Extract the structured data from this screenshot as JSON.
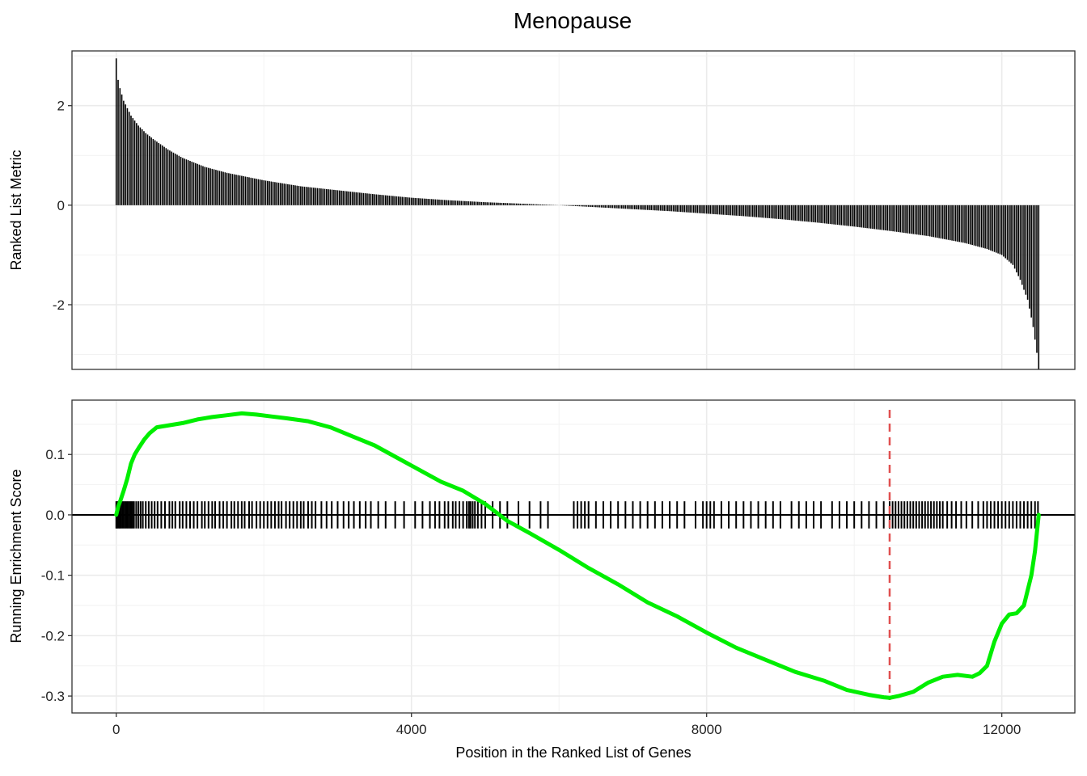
{
  "chart_data": {
    "type": "line",
    "title": "Menopause",
    "xlabel": "Position in the Ranked List of Genes",
    "xlim": [
      -600,
      12990
    ],
    "xticks": [
      0,
      4000,
      8000,
      12000
    ],
    "grid": true,
    "panels": [
      {
        "name": "ranked-metric",
        "ylabel": "Ranked List Metric",
        "ylim": [
          -3.3,
          3.1
        ],
        "yticks": [
          -2,
          0,
          2
        ],
        "n_genes": 12500,
        "ranked_metric_curve": [
          [
            0,
            2.95
          ],
          [
            20,
            2.55
          ],
          [
            50,
            2.35
          ],
          [
            100,
            2.1
          ],
          [
            150,
            1.95
          ],
          [
            200,
            1.8
          ],
          [
            300,
            1.6
          ],
          [
            400,
            1.45
          ],
          [
            500,
            1.33
          ],
          [
            700,
            1.12
          ],
          [
            900,
            0.95
          ],
          [
            1200,
            0.77
          ],
          [
            1500,
            0.65
          ],
          [
            2000,
            0.5
          ],
          [
            2500,
            0.38
          ],
          [
            3000,
            0.3
          ],
          [
            3500,
            0.22
          ],
          [
            4000,
            0.15
          ],
          [
            4500,
            0.1
          ],
          [
            5000,
            0.06
          ],
          [
            5500,
            0.03
          ],
          [
            6000,
            0.0
          ],
          [
            6500,
            -0.04
          ],
          [
            7000,
            -0.08
          ],
          [
            7500,
            -0.12
          ],
          [
            8000,
            -0.17
          ],
          [
            8500,
            -0.22
          ],
          [
            9000,
            -0.28
          ],
          [
            9500,
            -0.35
          ],
          [
            10000,
            -0.43
          ],
          [
            10500,
            -0.52
          ],
          [
            11000,
            -0.62
          ],
          [
            11500,
            -0.76
          ],
          [
            11800,
            -0.88
          ],
          [
            12000,
            -1.0
          ],
          [
            12150,
            -1.2
          ],
          [
            12250,
            -1.5
          ],
          [
            12350,
            -1.9
          ],
          [
            12420,
            -2.4
          ],
          [
            12470,
            -2.9
          ],
          [
            12500,
            -3.3
          ]
        ]
      },
      {
        "name": "running-enrichment",
        "ylabel": "Running Enrichment Score",
        "ylim": [
          -0.328,
          0.19
        ],
        "yticks": [
          -0.3,
          -0.2,
          -0.1,
          0.0,
          0.1
        ],
        "ytick_labels": [
          "-0.3",
          "-0.2",
          "-0.1",
          "0.0",
          "0.1"
        ],
        "max_deviation_position": 10480,
        "series": [
          {
            "color": "#00ee00",
            "x": [
              0,
              30,
              60,
              100,
              150,
              200,
              250,
              300,
              380,
              450,
              550,
              700,
              900,
              1100,
              1300,
              1500,
              1700,
              1900,
              2100,
              2300,
              2600,
              2900,
              3200,
              3500,
              3800,
              4100,
              4400,
              4700,
              5000,
              5300,
              5600,
              6000,
              6400,
              6800,
              7200,
              7600,
              8000,
              8400,
              8800,
              9200,
              9600,
              9900,
              10200,
              10400,
              10480,
              10600,
              10800,
              11000,
              11200,
              11400,
              11600,
              11700,
              11800,
              11900,
              12000,
              12100,
              12200,
              12300,
              12400,
              12450,
              12500
            ],
            "y": [
              0.0,
              0.015,
              0.025,
              0.04,
              0.06,
              0.085,
              0.1,
              0.11,
              0.125,
              0.135,
              0.145,
              0.148,
              0.152,
              0.158,
              0.162,
              0.165,
              0.168,
              0.166,
              0.163,
              0.16,
              0.155,
              0.145,
              0.13,
              0.115,
              0.095,
              0.075,
              0.055,
              0.04,
              0.018,
              -0.01,
              -0.03,
              -0.058,
              -0.088,
              -0.115,
              -0.145,
              -0.168,
              -0.195,
              -0.22,
              -0.24,
              -0.26,
              -0.275,
              -0.29,
              -0.298,
              -0.302,
              -0.303,
              -0.3,
              -0.293,
              -0.278,
              -0.268,
              -0.265,
              -0.268,
              -0.262,
              -0.25,
              -0.21,
              -0.18,
              -0.165,
              -0.163,
              -0.15,
              -0.1,
              -0.06,
              0.0
            ]
          }
        ],
        "gene_hits": [
          0,
          15,
          30,
          45,
          60,
          80,
          100,
          120,
          140,
          160,
          180,
          200,
          220,
          240,
          270,
          300,
          330,
          360,
          400,
          440,
          480,
          520,
          560,
          610,
          660,
          720,
          760,
          800,
          860,
          900,
          950,
          1000,
          1050,
          1100,
          1160,
          1200,
          1250,
          1300,
          1340,
          1400,
          1450,
          1500,
          1560,
          1600,
          1650,
          1700,
          1740,
          1800,
          1840,
          1900,
          1950,
          2000,
          2050,
          2100,
          2150,
          2200,
          2240,
          2300,
          2350,
          2400,
          2450,
          2500,
          2540,
          2600,
          2650,
          2700,
          2780,
          2850,
          2920,
          3000,
          3080,
          3150,
          3220,
          3300,
          3380,
          3450,
          3550,
          3650,
          3780,
          3900,
          4050,
          4150,
          4250,
          4320,
          4380,
          4450,
          4500,
          4560,
          4600,
          4650,
          4700,
          4750,
          4780,
          4800,
          4830,
          4860,
          4900,
          4950,
          5000,
          5100,
          5200,
          5300,
          5450,
          5600,
          5750,
          5850,
          6200,
          6250,
          6300,
          6350,
          6400,
          6500,
          6600,
          6700,
          6800,
          6900,
          7000,
          7100,
          7200,
          7300,
          7400,
          7500,
          7600,
          7700,
          7850,
          7950,
          8000,
          8050,
          8100,
          8200,
          8300,
          8400,
          8500,
          8600,
          8700,
          8800,
          8900,
          9000,
          9150,
          9250,
          9350,
          9450,
          9550,
          9700,
          9800,
          9900,
          10000,
          10100,
          10200,
          10300,
          10400,
          10480,
          10520,
          10560,
          10600,
          10640,
          10680,
          10720,
          10760,
          10800,
          10840,
          10880,
          10920,
          10960,
          11000,
          11040,
          11080,
          11120,
          11160,
          11200,
          11260,
          11320,
          11380,
          11450,
          11520,
          11600,
          11680,
          11750,
          11800,
          11850,
          11900,
          11950,
          12000,
          12050,
          12100,
          12150,
          12200,
          12250,
          12300,
          12350,
          12400,
          12450,
          12490
        ]
      }
    ]
  }
}
